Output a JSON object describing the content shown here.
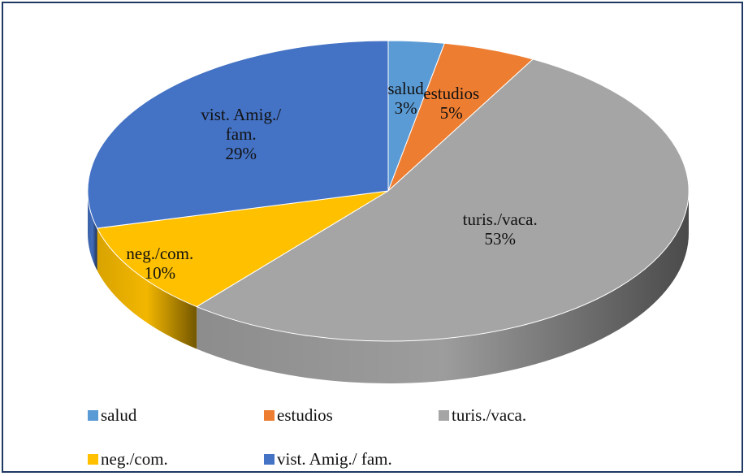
{
  "chart_data": {
    "type": "pie",
    "categories": [
      "salud",
      "estudios",
      "turis./vaca.",
      "neg./com.",
      "vist. Amig./ fam."
    ],
    "values": [
      3,
      5,
      53,
      10,
      29
    ],
    "value_labels": [
      "3%",
      "5%",
      "53%",
      "10%",
      "29%"
    ],
    "colors": [
      "#5b9bd5",
      "#ed7d31",
      "#a5a5a5",
      "#ffc000",
      "#4472c4"
    ],
    "legend": "bottom"
  }
}
